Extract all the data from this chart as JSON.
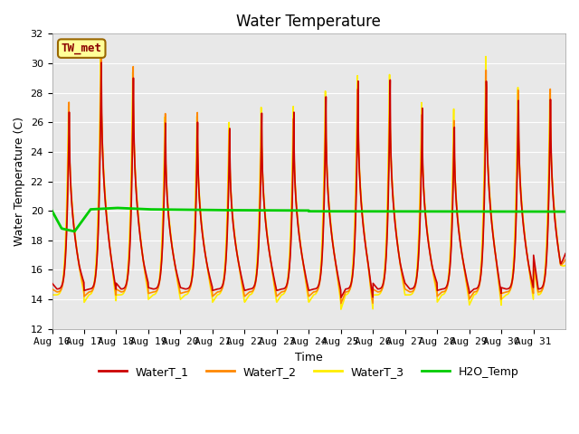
{
  "title": "Water Temperature",
  "xlabel": "Time",
  "ylabel": "Water Temperature (C)",
  "ylim": [
    12,
    32
  ],
  "x_tick_labels": [
    "Aug 16",
    "Aug 17",
    "Aug 18",
    "Aug 19",
    "Aug 20",
    "Aug 21",
    "Aug 22",
    "Aug 23",
    "Aug 24",
    "Aug 25",
    "Aug 26",
    "Aug 27",
    "Aug 28",
    "Aug 29",
    "Aug 30",
    "Aug 31"
  ],
  "annotation_text": "TW_met",
  "annotation_color": "#8B0000",
  "annotation_bg": "#FFFF99",
  "annotation_border": "#996600",
  "line_colors": {
    "WaterT_1": "#CC0000",
    "WaterT_2": "#FF8800",
    "WaterT_3": "#FFEE00",
    "H2O_Temp": "#00CC00"
  },
  "line_widths": {
    "WaterT_1": 1.2,
    "WaterT_2": 1.2,
    "WaterT_3": 1.2,
    "H2O_Temp": 2.0
  },
  "bg_color": "#E8E8E8",
  "title_fontsize": 12,
  "axis_label_fontsize": 9,
  "tick_fontsize": 8
}
